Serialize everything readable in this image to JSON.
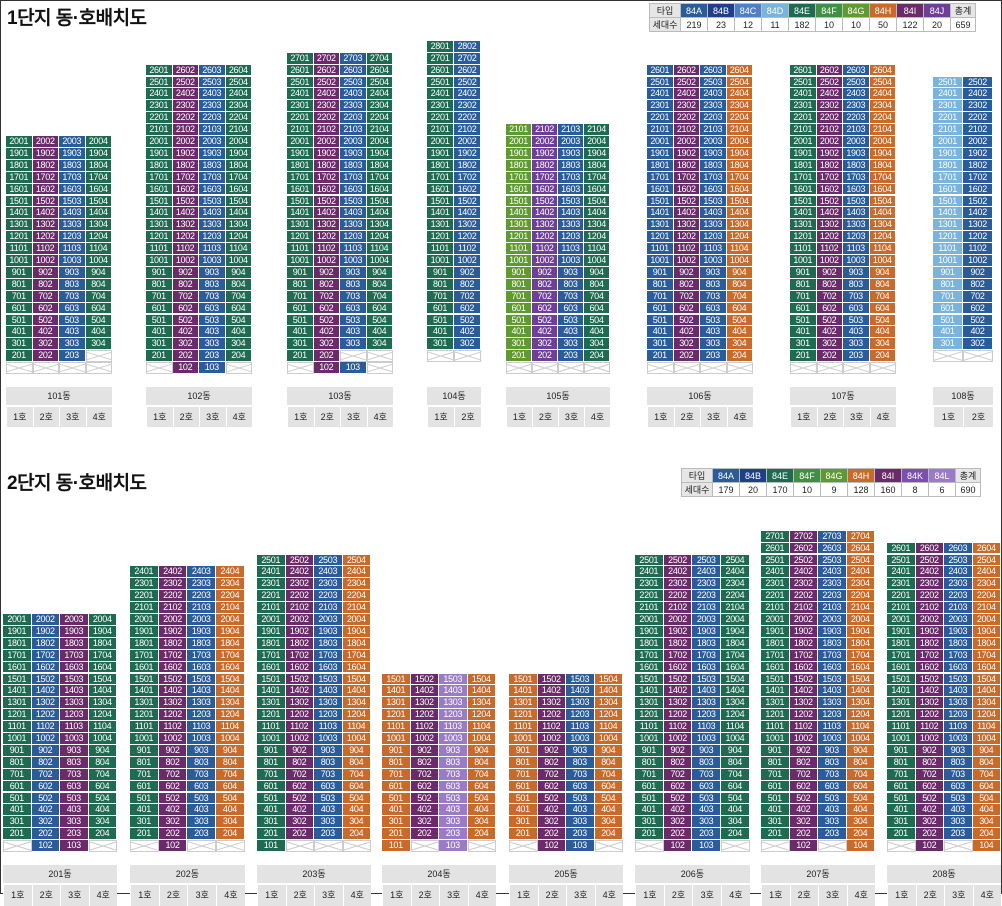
{
  "colors": {
    "84A": "#2a5c9a",
    "84B": "#1f3f8a",
    "84C": "#4f7fc8",
    "84D": "#7ab3dc",
    "84E": "#1f6b52",
    "84F": "#3f8f44",
    "84G": "#5f9a30",
    "84H": "#c86a2a",
    "84I": "#6b2a6a",
    "84J": "#6f3e98",
    "84K": "#7a4fb0",
    "84L": "#9a7cc6"
  },
  "complex1": {
    "title": "1단지 동·호배치도",
    "legend": {
      "type_header": "타입",
      "count_header": "세대수",
      "types": [
        "84A",
        "84B",
        "84C",
        "84D",
        "84E",
        "84F",
        "84G",
        "84H",
        "84I",
        "84J"
      ],
      "counts": [
        "219",
        "23",
        "12",
        "11",
        "182",
        "10",
        "10",
        "50",
        "122",
        "20"
      ],
      "total_label": "총계",
      "total": "659"
    },
    "buildings": [
      {
        "name": "101동",
        "units": [
          "1호",
          "2호",
          "3호",
          "4호"
        ],
        "top": 20,
        "first": 2,
        "missing": [
          [
            1,
            1
          ],
          [
            1,
            2
          ],
          [
            1,
            3
          ],
          [
            1,
            4
          ],
          [
            2,
            4
          ]
        ],
        "types": {
          "1": "84E",
          "2": "84I",
          "3": "84A",
          "4": "84E"
        }
      },
      {
        "name": "102동",
        "units": [
          "1호",
          "2호",
          "3호",
          "4호"
        ],
        "top": 26,
        "first": 1,
        "missing": [
          [
            1,
            1
          ],
          [
            1,
            4
          ]
        ],
        "types": {
          "1": "84E",
          "2": "84I",
          "3": "84A",
          "4": "84E"
        }
      },
      {
        "name": "103동",
        "units": [
          "1호",
          "2호",
          "3호",
          "4호"
        ],
        "top": 27,
        "first": 1,
        "missing": [
          [
            1,
            1
          ],
          [
            1,
            4
          ],
          [
            2,
            3
          ],
          [
            2,
            4
          ]
        ],
        "types": {
          "1": "84E",
          "2": "84I",
          "3": "84A",
          "4": "84E"
        }
      },
      {
        "name": "104동",
        "units": [
          "1호",
          "2호"
        ],
        "top": 28,
        "first": 3,
        "missing": [],
        "types": {
          "1": "84E",
          "2": "84A"
        }
      },
      {
        "name": "105동",
        "units": [
          "1호",
          "2호",
          "3호",
          "4호"
        ],
        "top": 21,
        "first": 2,
        "missing": [],
        "types": {
          "1": "84G",
          "2": "84J",
          "3": "84A",
          "4": "84E"
        }
      },
      {
        "name": "106동",
        "units": [
          "1호",
          "2호",
          "3호",
          "4호"
        ],
        "top": 26,
        "first": 2,
        "missing": [],
        "types": {
          "1": "84A",
          "2": "84I",
          "3": "84A",
          "4": "84H"
        }
      },
      {
        "name": "107동",
        "units": [
          "1호",
          "2호",
          "3호",
          "4호"
        ],
        "top": 26,
        "first": 2,
        "missing": [],
        "types": {
          "1": "84E",
          "2": "84I",
          "3": "84A",
          "4": "84H"
        }
      },
      {
        "name": "108동",
        "units": [
          "1호",
          "2호"
        ],
        "top": 25,
        "first": 3,
        "missing": [],
        "types": {
          "1": "84D",
          "2": "84A"
        }
      }
    ]
  },
  "complex2": {
    "title": "2단지 동·호배치도",
    "legend": {
      "type_header": "타입",
      "count_header": "세대수",
      "types": [
        "84A",
        "84B",
        "84E",
        "84F",
        "84G",
        "84H",
        "84I",
        "84K",
        "84L"
      ],
      "counts": [
        "179",
        "20",
        "170",
        "10",
        "9",
        "128",
        "160",
        "8",
        "6"
      ],
      "total_label": "총계",
      "total": "690"
    },
    "buildings": [
      {
        "name": "201동",
        "units": [
          "1호",
          "2호",
          "3호",
          "4호"
        ],
        "top": 20,
        "first": 1,
        "missing": [
          [
            1,
            1
          ],
          [
            1,
            4
          ]
        ],
        "types": {
          "1": "84E",
          "2": "84A",
          "3": "84I",
          "4": "84E"
        }
      },
      {
        "name": "202동",
        "units": [
          "1호",
          "2호",
          "3호",
          "4호"
        ],
        "top": 24,
        "first": 1,
        "missing": [
          [
            1,
            1
          ],
          [
            1,
            3
          ],
          [
            1,
            4
          ]
        ],
        "types": {
          "1": "84E",
          "2": "84I",
          "3": "84A",
          "4": "84H"
        }
      },
      {
        "name": "203동",
        "units": [
          "1호",
          "2호",
          "3호",
          "4호"
        ],
        "top": 25,
        "first": 1,
        "missing": [
          [
            1,
            2
          ],
          [
            1,
            3
          ],
          [
            1,
            4
          ]
        ],
        "types": {
          "1": "84E",
          "2": "84I",
          "3": "84A",
          "4": "84H"
        }
      },
      {
        "name": "204동",
        "units": [
          "1호",
          "2호",
          "3호",
          "4호"
        ],
        "top": 15,
        "first": 1,
        "missing": [
          [
            1,
            2
          ],
          [
            1,
            4
          ]
        ],
        "types": {
          "1": "84H",
          "2": "84I",
          "3": "84L",
          "4": "84H"
        }
      },
      {
        "name": "205동",
        "units": [
          "1호",
          "2호",
          "3호",
          "4호"
        ],
        "top": 15,
        "first": 1,
        "missing": [
          [
            1,
            1
          ],
          [
            1,
            4
          ]
        ],
        "types": {
          "1": "84H",
          "2": "84I",
          "3": "84A",
          "4": "84H"
        }
      },
      {
        "name": "206동",
        "units": [
          "1호",
          "2호",
          "3호",
          "4호"
        ],
        "top": 25,
        "first": 1,
        "missing": [
          [
            1,
            1
          ],
          [
            1,
            4
          ]
        ],
        "types": {
          "1": "84E",
          "2": "84I",
          "3": "84A",
          "4": "84E"
        }
      },
      {
        "name": "207동",
        "units": [
          "1호",
          "2호",
          "3호",
          "4호"
        ],
        "top": 27,
        "first": 1,
        "missing": [
          [
            1,
            1
          ],
          [
            1,
            3
          ]
        ],
        "types": {
          "1": "84E",
          "2": "84I",
          "3": "84A",
          "4": "84H"
        }
      },
      {
        "name": "208동",
        "units": [
          "1호",
          "2호",
          "3호",
          "4호"
        ],
        "top": 26,
        "first": 1,
        "missing": [
          [
            1,
            1
          ],
          [
            1,
            3
          ]
        ],
        "types": {
          "1": "84E",
          "2": "84I",
          "3": "84A",
          "4": "84H"
        }
      }
    ]
  }
}
